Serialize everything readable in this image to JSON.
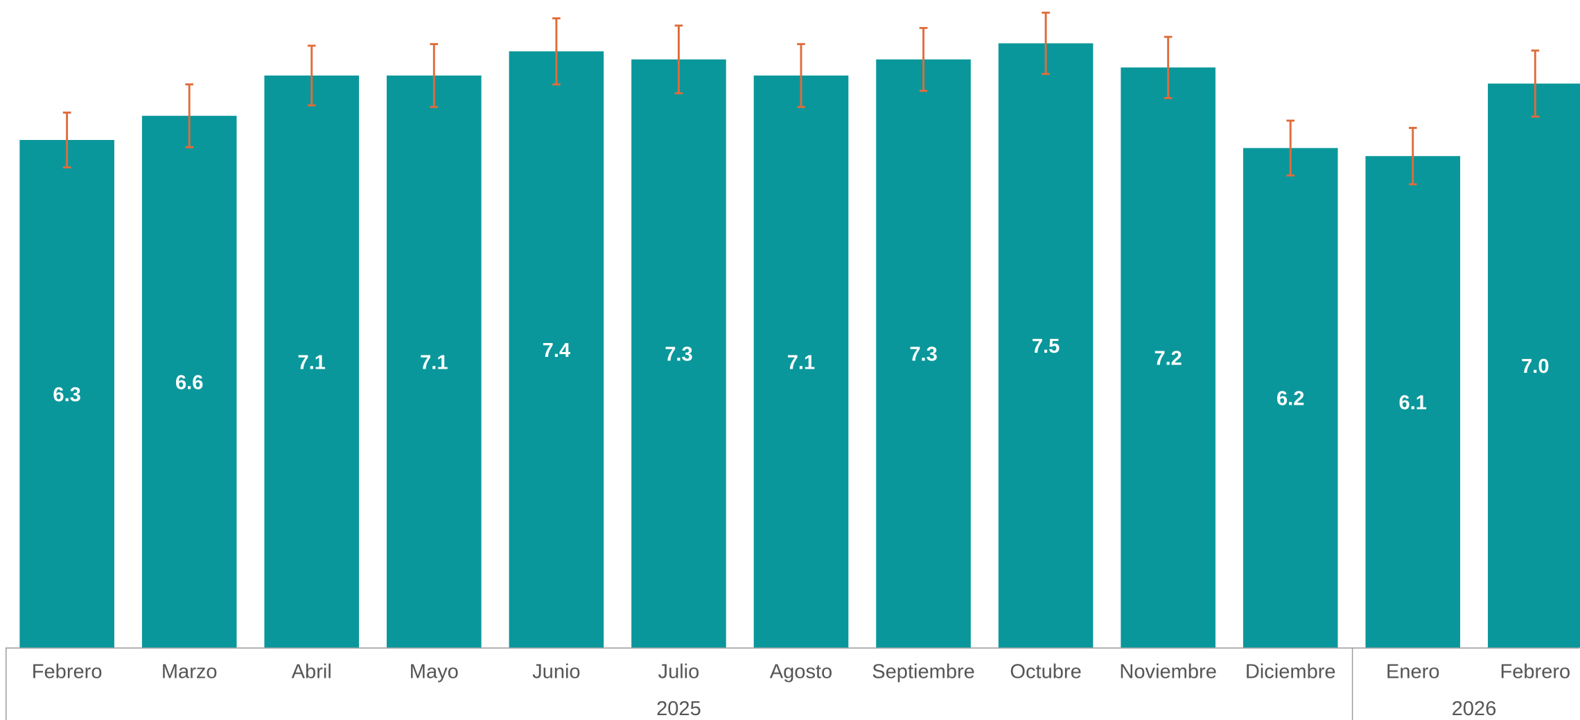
{
  "chart_data": {
    "type": "bar",
    "groups": [
      {
        "name": "2025",
        "categories": [
          "Febrero",
          "Marzo",
          "Abril",
          "Mayo",
          "Junio",
          "Julio",
          "Agosto",
          "Septiembre",
          "Octubre",
          "Noviembre",
          "Diciembre"
        ]
      },
      {
        "name": "2026",
        "categories": [
          "Enero",
          "Febrero"
        ]
      }
    ],
    "values": [
      6.3,
      6.6,
      7.1,
      7.1,
      7.4,
      7.3,
      7.1,
      7.3,
      7.5,
      7.2,
      6.2,
      6.1,
      7.0
    ],
    "value_labels": [
      "6.3",
      "6.6",
      "7.1",
      "7.1",
      "7.4",
      "7.3",
      "7.1",
      "7.3",
      "7.5",
      "7.2",
      "6.2",
      "6.1",
      "7.0"
    ],
    "errors": [
      0.34,
      0.39,
      0.37,
      0.39,
      0.41,
      0.42,
      0.39,
      0.39,
      0.38,
      0.38,
      0.34,
      0.35,
      0.41
    ],
    "color": "#0a979b",
    "error_color": "#e06c3a",
    "ylim": [
      0,
      8
    ]
  }
}
